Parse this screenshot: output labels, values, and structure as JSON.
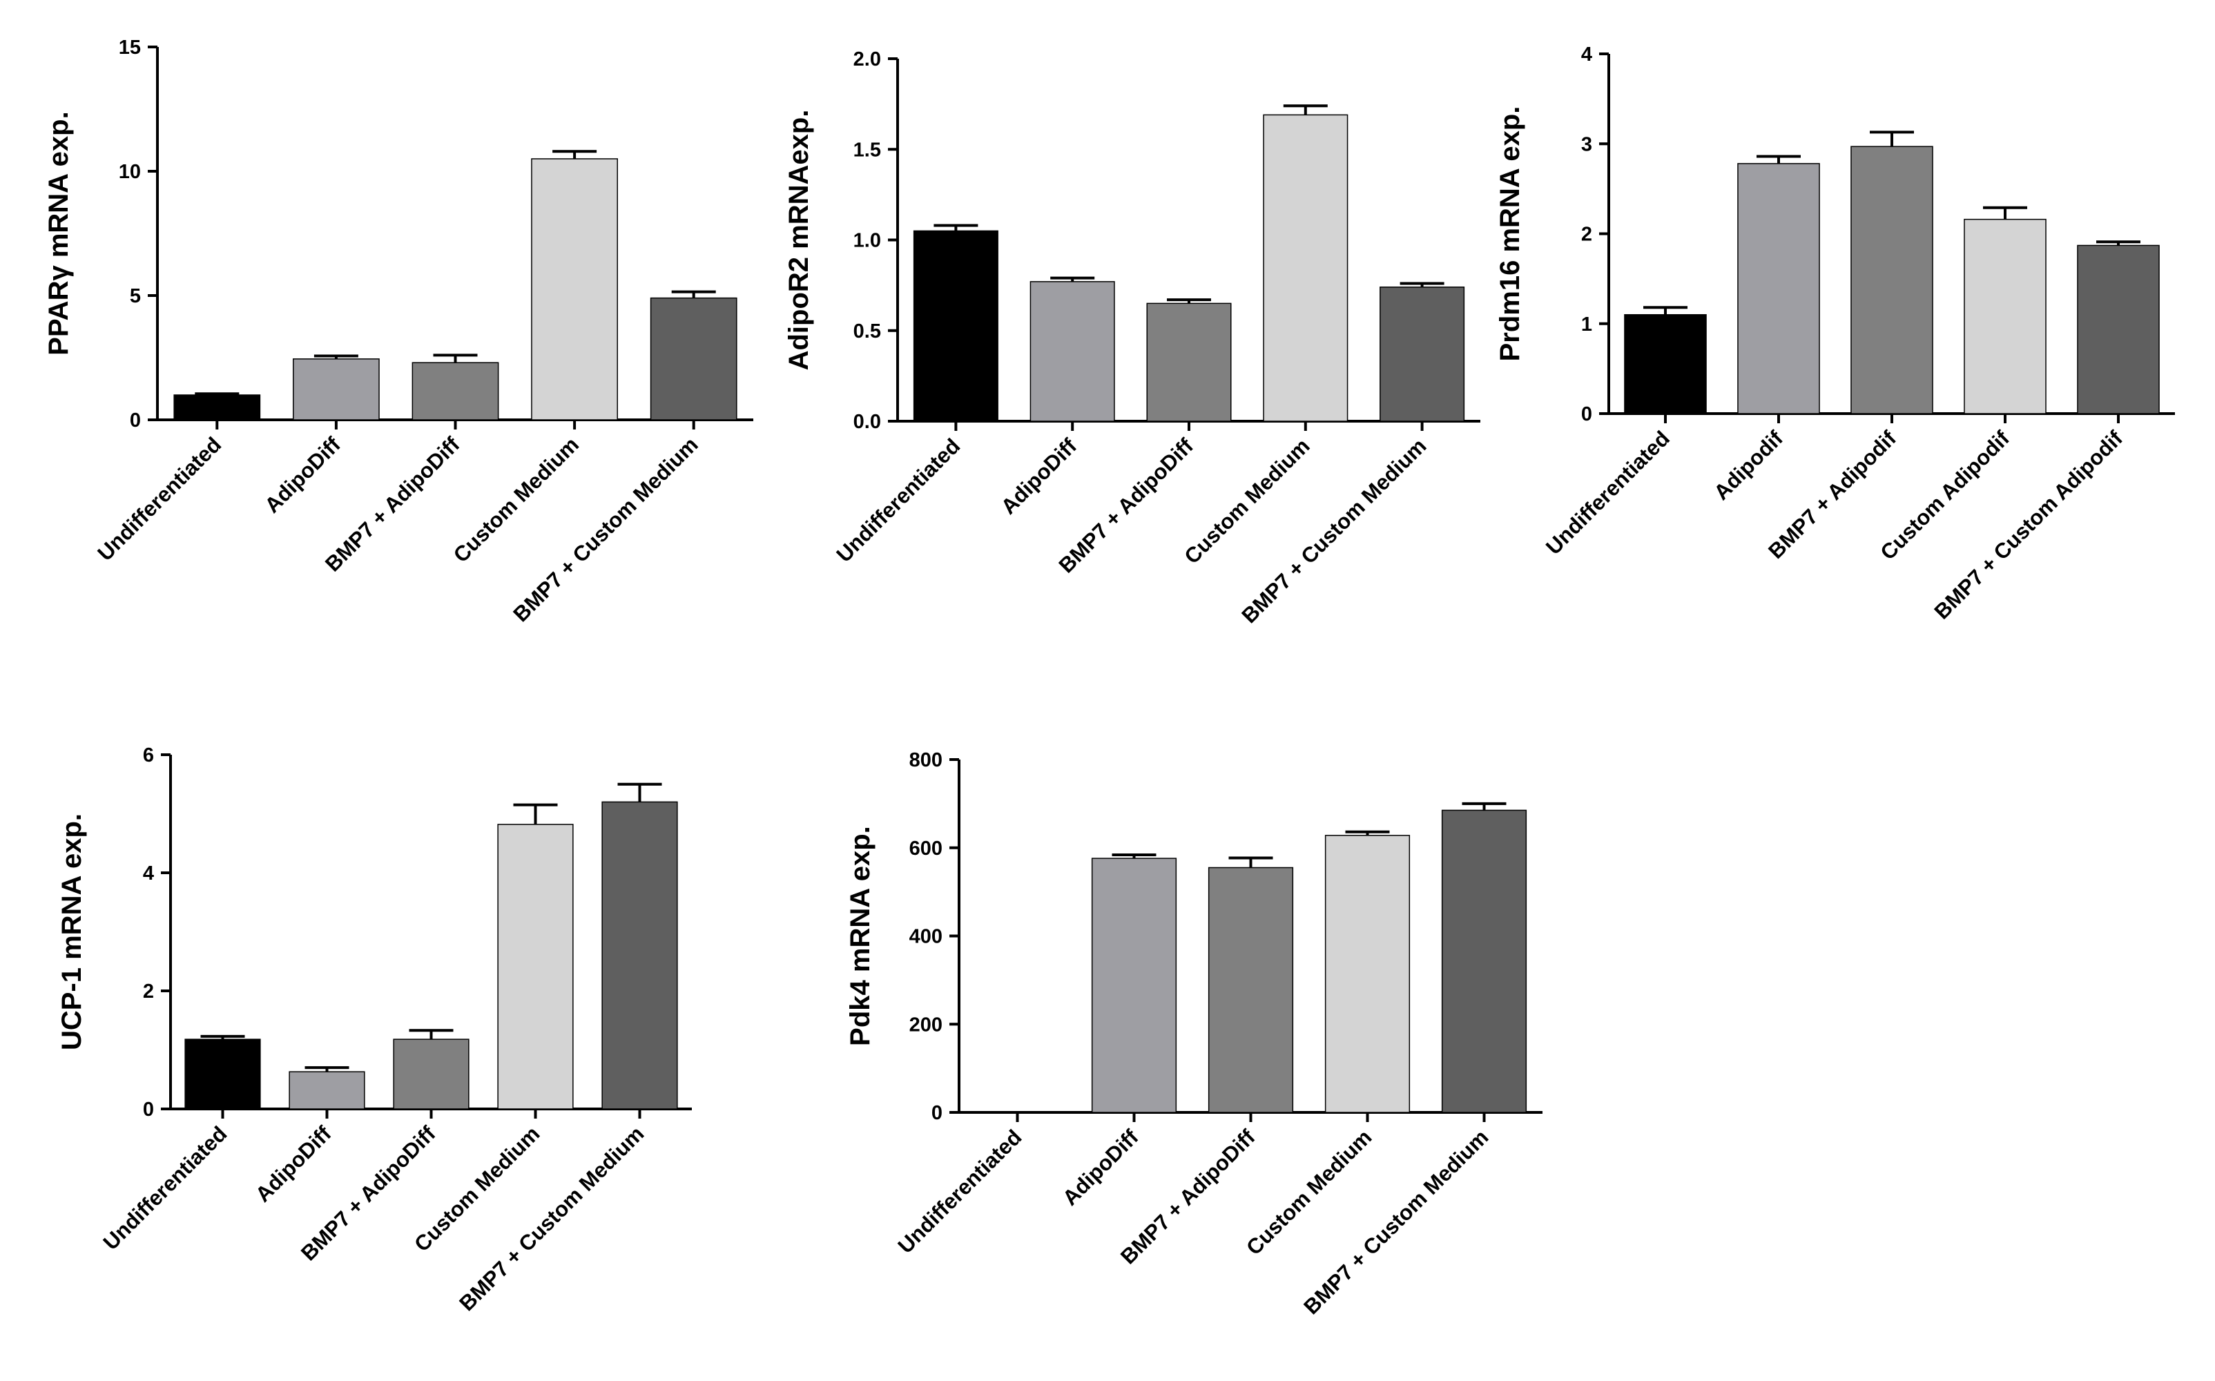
{
  "chart_data": [
    {
      "type": "bar",
      "ylabel": "PPARγ mRNA exp.",
      "ylim": [
        0,
        15
      ],
      "yticks": [
        0,
        5,
        10,
        15
      ],
      "categories": [
        "Undifferentiated",
        "AdipoDiff",
        "BMP7 + AdipoDiff",
        "Custom Medium",
        "BMP7 + Custom Medium"
      ],
      "values": [
        1.0,
        2.45,
        2.3,
        10.5,
        4.9
      ],
      "errors": [
        0.05,
        0.12,
        0.3,
        0.3,
        0.25
      ],
      "colors": [
        "#000000",
        "#9e9ea3",
        "#808080",
        "#d4d4d4",
        "#5f5f5f"
      ]
    },
    {
      "type": "bar",
      "ylabel": "AdipoR2 mRNAexp.",
      "ylim": [
        0,
        2.0
      ],
      "yticks": [
        0.0,
        0.5,
        1.0,
        1.5,
        2.0
      ],
      "tick_labels": [
        "0.0",
        "0.5",
        "1.0",
        "1.5",
        "2.0"
      ],
      "categories": [
        "Undifferentiated",
        "AdipoDiff",
        "BMP7 + AdipoDiff",
        "Custom Medium",
        "BMP7 + Custom Medium"
      ],
      "values": [
        1.05,
        0.77,
        0.65,
        1.69,
        0.74
      ],
      "errors": [
        0.03,
        0.02,
        0.02,
        0.05,
        0.02
      ],
      "colors": [
        "#000000",
        "#9e9ea3",
        "#808080",
        "#d4d4d4",
        "#5f5f5f"
      ]
    },
    {
      "type": "bar",
      "ylabel": "Prdm16 mRNA exp.",
      "ylim": [
        0,
        4
      ],
      "yticks": [
        0,
        1,
        2,
        3,
        4
      ],
      "categories": [
        "Undifferentiated",
        "Adipodif",
        "BMP7 + Adipodif",
        "Custom Adipodif",
        "BMP7 + Custom Adipodif"
      ],
      "values": [
        1.1,
        2.78,
        2.97,
        2.16,
        1.87
      ],
      "errors": [
        0.08,
        0.08,
        0.16,
        0.13,
        0.04
      ],
      "colors": [
        "#000000",
        "#9e9ea3",
        "#808080",
        "#d4d4d4",
        "#5f5f5f"
      ]
    },
    {
      "type": "bar",
      "ylabel": "UCP-1 mRNA exp.",
      "ylim": [
        0,
        6
      ],
      "yticks": [
        0,
        2,
        4,
        6
      ],
      "categories": [
        "Undifferentiated",
        "AdipoDiff",
        "BMP7 + AdipoDiff",
        "Custom Medium",
        "BMP7 + Custom Medium"
      ],
      "values": [
        1.18,
        0.63,
        1.18,
        4.82,
        5.2
      ],
      "errors": [
        0.05,
        0.07,
        0.15,
        0.33,
        0.3
      ],
      "colors": [
        "#000000",
        "#9e9ea3",
        "#808080",
        "#d4d4d4",
        "#5f5f5f"
      ]
    },
    {
      "type": "bar",
      "ylabel": "Pdk4 mRNA exp.",
      "ylim": [
        0,
        800
      ],
      "yticks": [
        0,
        200,
        400,
        600,
        800
      ],
      "categories": [
        "Undifferentiated",
        "AdipoDiff",
        "BMP7 + AdipoDiff",
        "Custom Medium",
        "BMP7 + Custom Medium"
      ],
      "values": [
        0,
        576,
        555,
        628,
        685
      ],
      "errors": [
        0,
        8,
        22,
        8,
        15
      ],
      "colors": [
        "#000000",
        "#9e9ea3",
        "#808080",
        "#d4d4d4",
        "#5f5f5f"
      ]
    }
  ]
}
